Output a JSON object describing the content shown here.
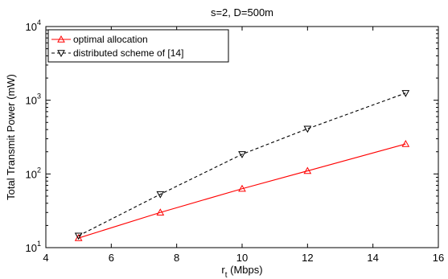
{
  "chart_data": {
    "type": "line",
    "title": "s=2, D=500m",
    "xlabel": {
      "main": "r",
      "sub": "t",
      "rest": " (Mbps)"
    },
    "ylabel": "Total Transmit Power (mW)",
    "xlim": [
      4,
      16
    ],
    "ylim": [
      10,
      10000
    ],
    "yscale": "log",
    "grid": false,
    "legend_position": "top-left",
    "xticks": [
      {
        "value": 4,
        "label": "4"
      },
      {
        "value": 6,
        "label": "6"
      },
      {
        "value": 8,
        "label": "8"
      },
      {
        "value": 10,
        "label": "10"
      },
      {
        "value": 12,
        "label": "12"
      },
      {
        "value": 14,
        "label": "14"
      },
      {
        "value": 16,
        "label": "16"
      }
    ],
    "yticks": [
      {
        "value": 10,
        "base": "10",
        "exp": "1"
      },
      {
        "value": 100,
        "base": "10",
        "exp": "2"
      },
      {
        "value": 1000,
        "base": "10",
        "exp": "3"
      },
      {
        "value": 10000,
        "base": "10",
        "exp": "4"
      }
    ],
    "series": [
      {
        "name": "optimal allocation",
        "color": "#ff0000",
        "line_style": "solid",
        "marker": "triangle-up",
        "x": [
          5,
          7.5,
          10,
          12,
          15
        ],
        "y": [
          13.5,
          30,
          63,
          110,
          255
        ]
      },
      {
        "name": "distributed scheme of [14]",
        "color": "#000000",
        "line_style": "dashed",
        "marker": "triangle-down",
        "x": [
          5,
          7.5,
          10,
          12,
          15
        ],
        "y": [
          14.5,
          53,
          185,
          410,
          1250
        ]
      }
    ]
  }
}
